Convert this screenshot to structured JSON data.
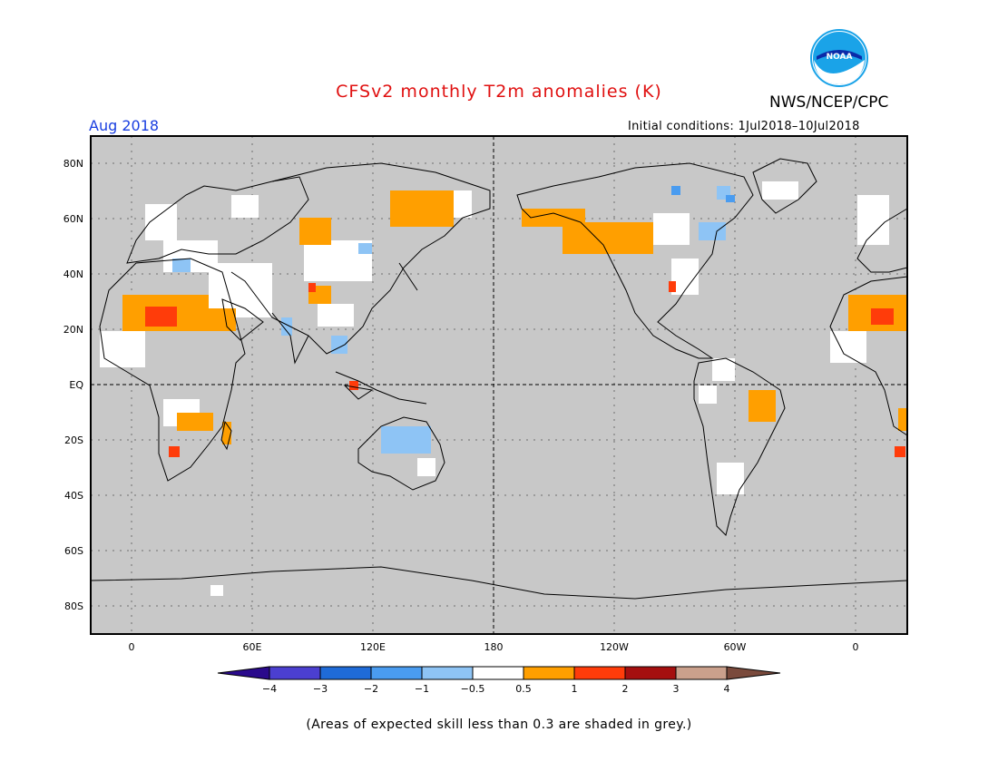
{
  "header": {
    "title": "CFSv2 monthly T2m anomalies (K)",
    "agency": "NWS/NCEP/CPC",
    "logo_text": "NOAA",
    "month": "Aug 2018",
    "initial_conditions": "Initial conditions: 1Jul2018–10Jul2018"
  },
  "map": {
    "lat_labels": [
      "80N",
      "60N",
      "40N",
      "20N",
      "EQ",
      "20S",
      "40S",
      "60S",
      "80S"
    ],
    "lon_labels": [
      "0",
      "60E",
      "120E",
      "180",
      "120W",
      "60W",
      "0"
    ],
    "land_fill": "#c8c8c8",
    "ocean_fill": "#c8c8c8",
    "no_signal_fill": "#ffffff"
  },
  "colorbar": {
    "labels": [
      "−4",
      "−3",
      "−2",
      "−1",
      "−0.5",
      "0.5",
      "1",
      "2",
      "3",
      "4"
    ],
    "colors": [
      "#2a0a8c",
      "#4b3fd0",
      "#1f6bd8",
      "#4a9cf0",
      "#8ec4f5",
      "#ffffff",
      "#ff9f00",
      "#ff3c0a",
      "#a50f0f",
      "#caa08c",
      "#7a4a3c"
    ]
  },
  "footer": {
    "note": "(Areas of expected skill less than 0.3 are shaded in grey.)"
  },
  "colors": {
    "title": "#e01010",
    "month": "#1a3fe0",
    "warm_anomaly": "#ff9f00",
    "strong_warm_anomaly": "#ff3c0a",
    "cool_anomaly": "#8ec4f5"
  }
}
